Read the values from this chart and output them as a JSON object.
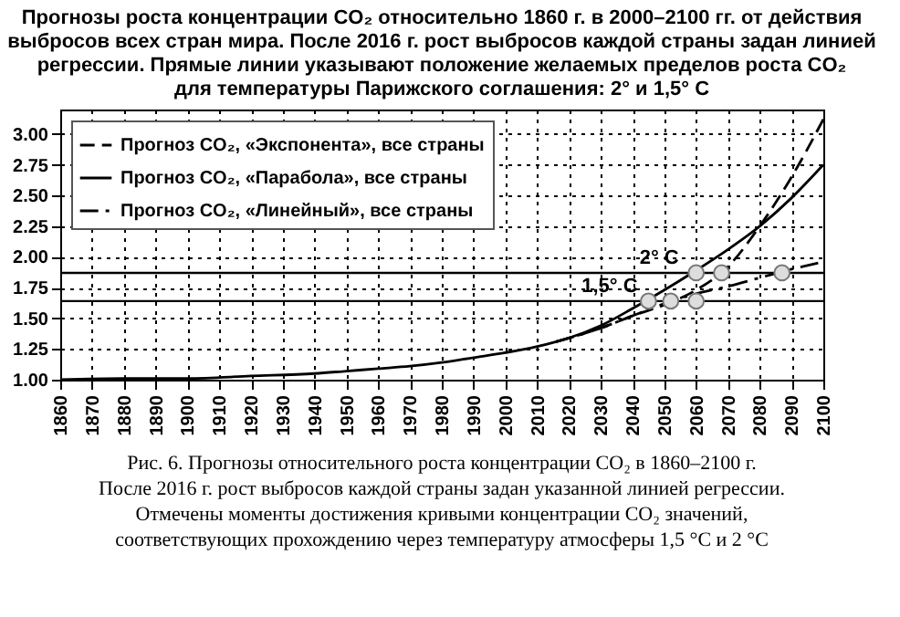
{
  "chart_data": {
    "type": "line",
    "title": "Прогнозы роста концентрации CO₂ относительно 1860 г. в 2000–2100 гг. от действия\nвыбросов всех стран мира. После 2016 г. рост выбросов каждой страны задан линией\nрегрессии. Прямые линии указывают положение желаемых пределов роста CO₂\nдля температуры Парижского соглашения: 2° и 1,5° C",
    "annotations": [
      "Рис. 6. Прогнозы относительного роста концентрации CO₂ в 1860–2100 г.\nПосле 2016 г. рост выбросов каждой страны задан указанной линией регрессии.\nОтмечены моменты достижения кривыми концентрации CO₂ значений,\nсоответствующих прохождению через температуру атмосферы 1,5 °C и 2 °C"
    ],
    "series": [
      {
        "name": "Прогноз CO₂, «Экспонента», все страны",
        "color": "#000000",
        "line_style": "dashed",
        "x": [
          2016,
          2030,
          2040,
          2050,
          2060,
          2070,
          2080,
          2090,
          2100
        ],
        "values": [
          1.31,
          1.42,
          1.52,
          1.61,
          1.73,
          1.92,
          2.25,
          2.65,
          3.12
        ]
      },
      {
        "name": "Прогноз CO₂, «Парабола», все страны",
        "color": "#000000",
        "line_style": "solid",
        "x": [
          1860,
          1880,
          1900,
          1920,
          1940,
          1950,
          1960,
          1970,
          1980,
          1990,
          2000,
          2010,
          2016,
          2020,
          2030,
          2040,
          2050,
          2060,
          2070,
          2080,
          2090,
          2100
        ],
        "values": [
          1.0,
          1.01,
          1.01,
          1.03,
          1.05,
          1.07,
          1.09,
          1.11,
          1.14,
          1.18,
          1.22,
          1.27,
          1.31,
          1.34,
          1.44,
          1.58,
          1.73,
          1.89,
          2.06,
          2.25,
          2.48,
          2.75
        ]
      },
      {
        "name": "Прогноз CO₂, «Линейный», все страны",
        "color": "#000000",
        "line_style": "dashdot",
        "x": [
          2016,
          2030,
          2040,
          2050,
          2060,
          2070,
          2080,
          2090,
          2100
        ],
        "values": [
          1.31,
          1.42,
          1.52,
          1.62,
          1.7,
          1.76,
          1.83,
          1.9,
          1.96
        ]
      },
      {
        "type": "scatter",
        "color": "#dddddd",
        "marker": "circle",
        "x": [
          2045,
          2052,
          2060,
          2060,
          2068,
          2087
        ],
        "values": [
          1.64,
          1.64,
          1.64,
          1.87,
          1.87,
          1.87
        ]
      }
    ],
    "ref_lines": [
      {
        "axis": "y",
        "value": 1.87,
        "label": "2° C"
      },
      {
        "axis": "y",
        "value": 1.64,
        "label": "1,5° C"
      }
    ],
    "xlim": [
      1860,
      2100
    ],
    "xticks": [
      1860,
      1870,
      1880,
      1890,
      1900,
      1910,
      1920,
      1930,
      1940,
      1950,
      1960,
      1970,
      1980,
      1990,
      2000,
      2010,
      2020,
      2030,
      2040,
      2050,
      2060,
      2070,
      2080,
      2090,
      2100
    ],
    "ylim": [
      1.0,
      3.2
    ],
    "yticks": [
      {
        "value": 1.0,
        "label": "1.00"
      },
      {
        "value": 1.25,
        "label": "1.25"
      },
      {
        "value": 1.5,
        "label": "1.50"
      },
      {
        "value": 1.75,
        "label": "1.75"
      },
      {
        "value": 2.0,
        "label": "2.00"
      },
      {
        "value": 2.25,
        "label": "2.25"
      },
      {
        "value": 2.5,
        "label": "2.50"
      },
      {
        "value": 2.75,
        "label": "2.75"
      },
      {
        "value": 3.0,
        "label": "3.00"
      }
    ],
    "grid": true,
    "legend": "top left"
  }
}
